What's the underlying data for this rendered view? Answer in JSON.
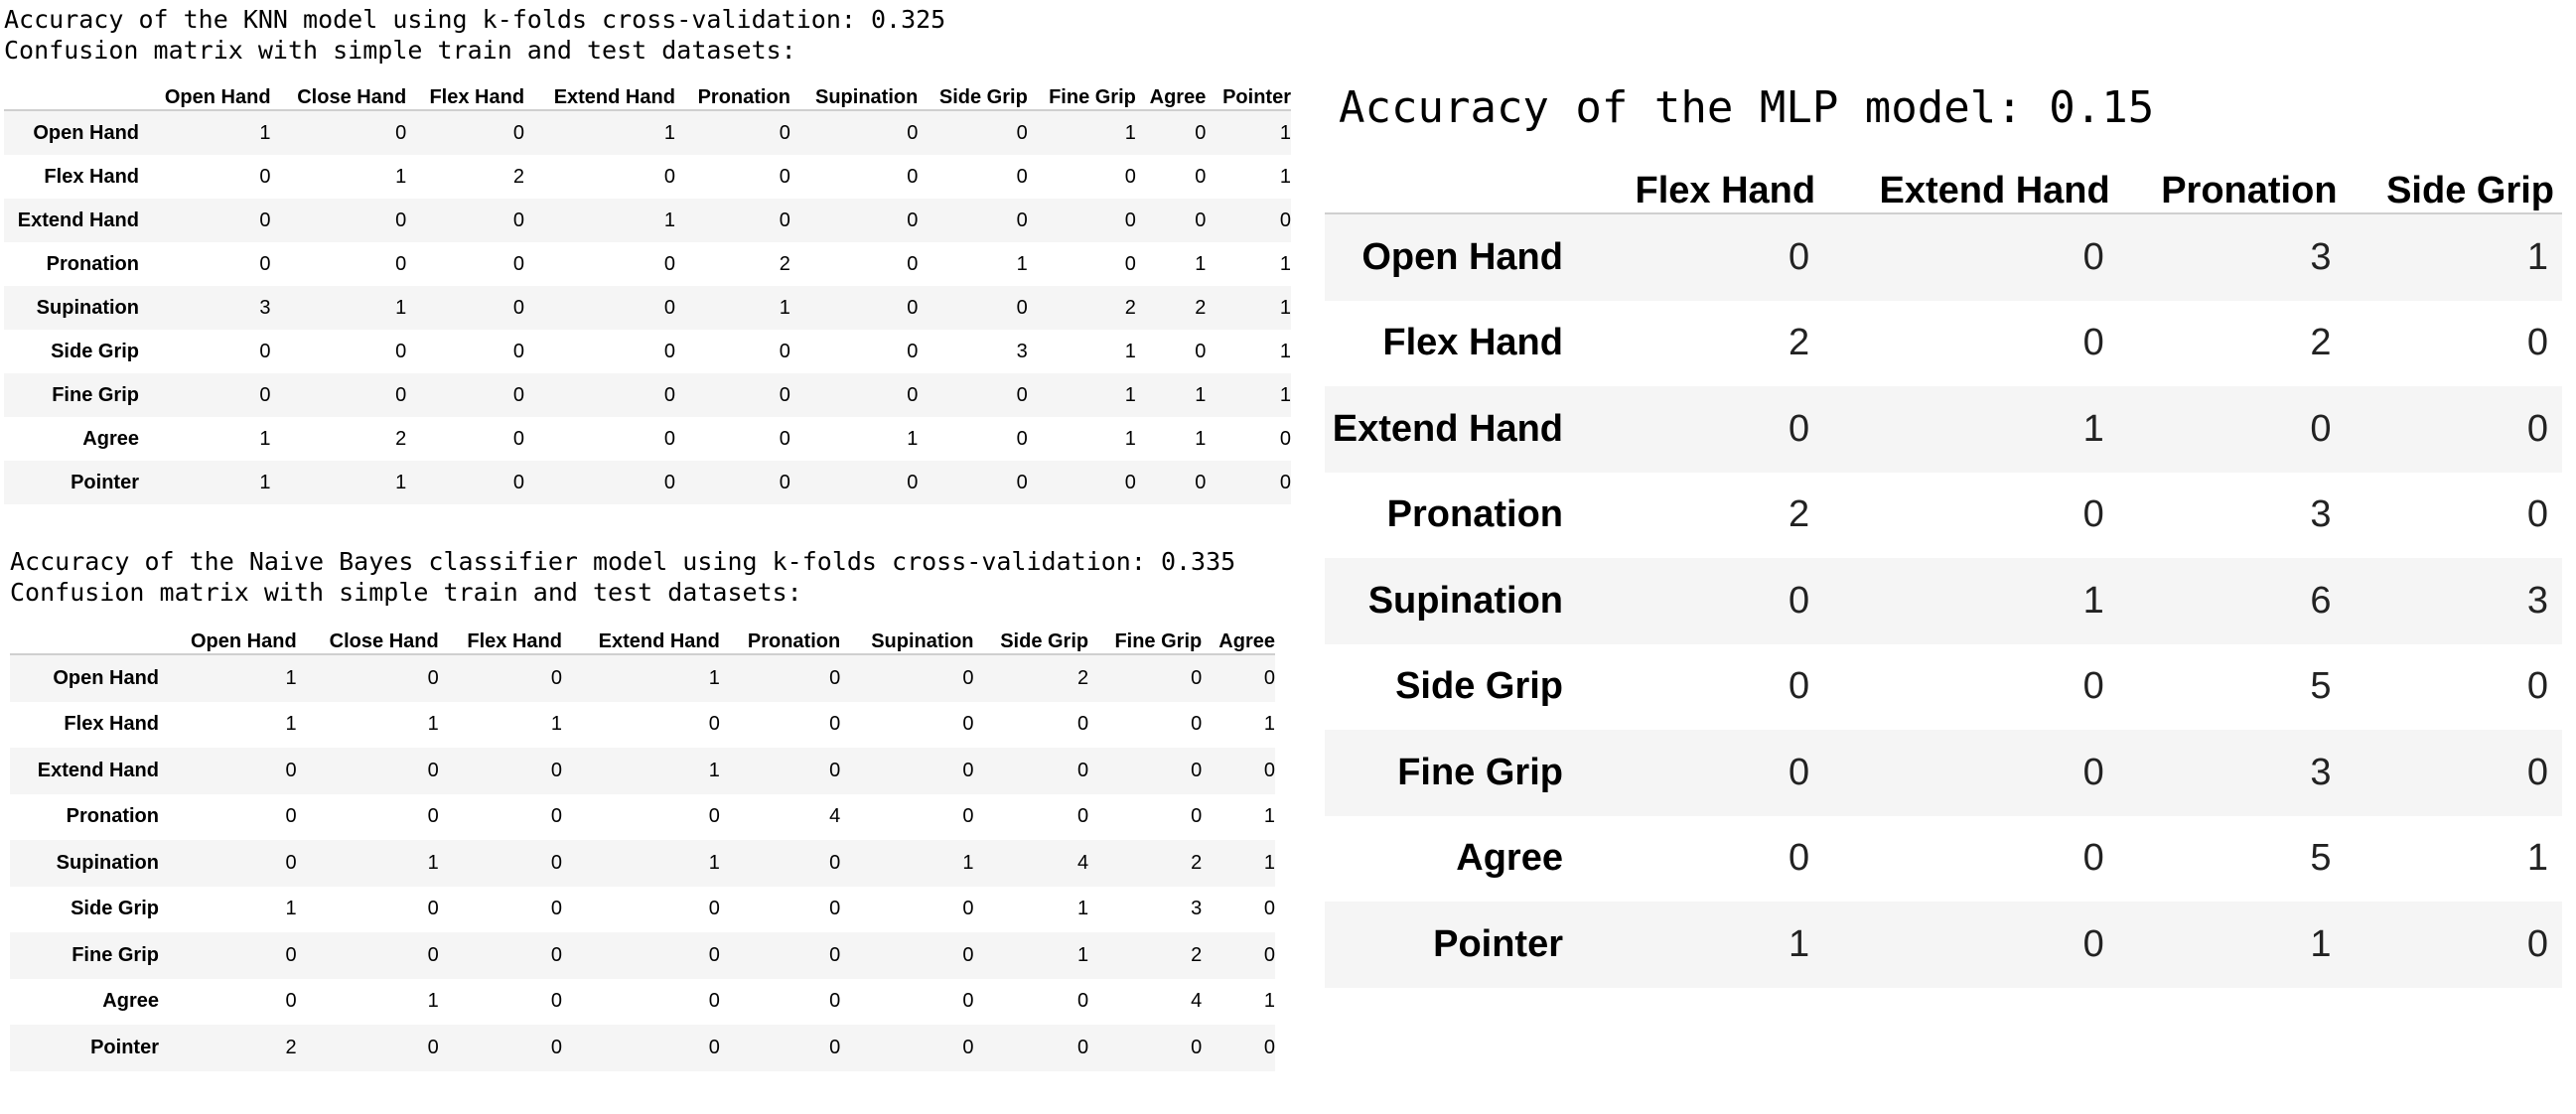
{
  "knn": {
    "accuracy_text": "Accuracy of the KNN model using k-folds cross-validation: 0.325",
    "matrix_caption": "Confusion matrix with simple train and test datasets:",
    "columns": [
      "Open Hand",
      "Close Hand",
      "Flex Hand",
      "Extend Hand",
      "Pronation",
      "Supination",
      "Side Grip",
      "Fine Grip",
      "Agree",
      "Pointer"
    ],
    "rows": [
      {
        "label": "Open Hand",
        "values": [
          "1",
          "0",
          "0",
          "1",
          "0",
          "0",
          "0",
          "1",
          "0",
          "1"
        ]
      },
      {
        "label": "Flex Hand",
        "values": [
          "0",
          "1",
          "2",
          "0",
          "0",
          "0",
          "0",
          "0",
          "0",
          "1"
        ]
      },
      {
        "label": "Extend Hand",
        "values": [
          "0",
          "0",
          "0",
          "1",
          "0",
          "0",
          "0",
          "0",
          "0",
          "0"
        ]
      },
      {
        "label": "Pronation",
        "values": [
          "0",
          "0",
          "0",
          "0",
          "2",
          "0",
          "1",
          "0",
          "1",
          "1"
        ]
      },
      {
        "label": "Supination",
        "values": [
          "3",
          "1",
          "0",
          "0",
          "1",
          "0",
          "0",
          "2",
          "2",
          "1"
        ]
      },
      {
        "label": "Side Grip",
        "values": [
          "0",
          "0",
          "0",
          "0",
          "0",
          "0",
          "3",
          "1",
          "0",
          "1"
        ]
      },
      {
        "label": "Fine Grip",
        "values": [
          "0",
          "0",
          "0",
          "0",
          "0",
          "0",
          "0",
          "1",
          "1",
          "1"
        ]
      },
      {
        "label": "Agree",
        "values": [
          "1",
          "2",
          "0",
          "0",
          "0",
          "1",
          "0",
          "1",
          "1",
          "0"
        ]
      },
      {
        "label": "Pointer",
        "values": [
          "1",
          "1",
          "0",
          "0",
          "0",
          "0",
          "0",
          "0",
          "0",
          "0"
        ]
      }
    ]
  },
  "naive_bayes": {
    "accuracy_text": "Accuracy of the Naive Bayes classifier model using k-folds cross-validation: 0.335",
    "matrix_caption": "Confusion matrix with simple train and test datasets:",
    "columns": [
      "Open Hand",
      "Close Hand",
      "Flex Hand",
      "Extend Hand",
      "Pronation",
      "Supination",
      "Side Grip",
      "Fine Grip",
      "Agree"
    ],
    "rows": [
      {
        "label": "Open Hand",
        "values": [
          "1",
          "0",
          "0",
          "1",
          "0",
          "0",
          "2",
          "0",
          "0"
        ]
      },
      {
        "label": "Flex Hand",
        "values": [
          "1",
          "1",
          "1",
          "0",
          "0",
          "0",
          "0",
          "0",
          "1"
        ]
      },
      {
        "label": "Extend Hand",
        "values": [
          "0",
          "0",
          "0",
          "1",
          "0",
          "0",
          "0",
          "0",
          "0"
        ]
      },
      {
        "label": "Pronation",
        "values": [
          "0",
          "0",
          "0",
          "0",
          "4",
          "0",
          "0",
          "0",
          "1"
        ]
      },
      {
        "label": "Supination",
        "values": [
          "0",
          "1",
          "0",
          "1",
          "0",
          "1",
          "4",
          "2",
          "1"
        ]
      },
      {
        "label": "Side Grip",
        "values": [
          "1",
          "0",
          "0",
          "0",
          "0",
          "0",
          "1",
          "3",
          "0"
        ]
      },
      {
        "label": "Fine Grip",
        "values": [
          "0",
          "0",
          "0",
          "0",
          "0",
          "0",
          "1",
          "2",
          "0"
        ]
      },
      {
        "label": "Agree",
        "values": [
          "0",
          "1",
          "0",
          "0",
          "0",
          "0",
          "0",
          "4",
          "1"
        ]
      },
      {
        "label": "Pointer",
        "values": [
          "2",
          "0",
          "0",
          "0",
          "0",
          "0",
          "0",
          "0",
          "0"
        ]
      }
    ]
  },
  "mlp": {
    "accuracy_text": "Accuracy of the MLP model: 0.15",
    "columns": [
      "Flex Hand",
      "Extend Hand",
      "Pronation",
      "Side Grip"
    ],
    "rows": [
      {
        "label": "Open Hand",
        "values": [
          "0",
          "0",
          "3",
          "1"
        ]
      },
      {
        "label": "Flex Hand",
        "values": [
          "2",
          "0",
          "2",
          "0"
        ]
      },
      {
        "label": "Extend Hand",
        "values": [
          "0",
          "1",
          "0",
          "0"
        ]
      },
      {
        "label": "Pronation",
        "values": [
          "2",
          "0",
          "3",
          "0"
        ]
      },
      {
        "label": "Supination",
        "values": [
          "0",
          "1",
          "6",
          "3"
        ]
      },
      {
        "label": "Side Grip",
        "values": [
          "0",
          "0",
          "5",
          "0"
        ]
      },
      {
        "label": "Fine Grip",
        "values": [
          "0",
          "0",
          "3",
          "0"
        ]
      },
      {
        "label": "Agree",
        "values": [
          "0",
          "0",
          "5",
          "1"
        ]
      },
      {
        "label": "Pointer",
        "values": [
          "1",
          "0",
          "1",
          "0"
        ]
      }
    ]
  }
}
